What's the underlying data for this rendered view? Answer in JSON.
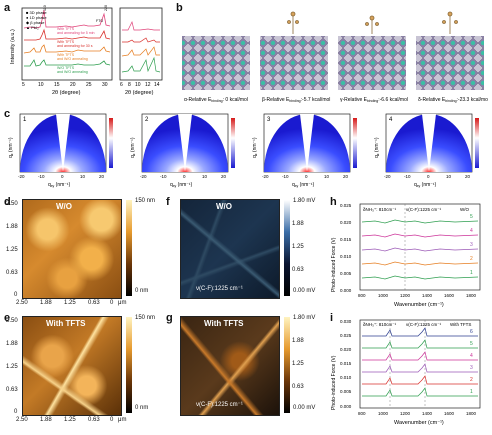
{
  "panels": {
    "a": {
      "label": "a",
      "xlabel": "2θ (degree)",
      "ylabel": "Intensity (a.u.)",
      "inset_xlabel": "2θ (degree)",
      "x_ticks": [
        "5",
        "10",
        "15",
        "20",
        "25",
        "30"
      ],
      "inset_x_ticks": [
        "6",
        "8",
        "10",
        "12",
        "14"
      ],
      "peak_labels": [
        "110",
        "FTO",
        "220"
      ],
      "legend": [
        "3D phase",
        "1D phase",
        "β phase",
        "PbI₂"
      ],
      "traces": [
        "With TFTS and annealing for 5 min",
        "With TFTS and annealing for 30 s",
        "With TFTS and W/O annealing",
        "W/O TFTS and W/O annealing"
      ]
    },
    "b": {
      "label": "b",
      "captions": [
        "α-Relative E_binding: 0 kcal/mol",
        "β-Relative E_binding: -5.7 kcal/mol",
        "γ-Relative E_binding: -6.6 kcal/mol",
        "δ-Relative E_binding: -23.3 kcal/mol"
      ]
    },
    "c": {
      "label": "c",
      "numbers": [
        "1",
        "2",
        "3",
        "4"
      ],
      "xlabel": "q_xy (nm⁻¹)",
      "ylabel": "q_z (nm⁻¹)",
      "x_ticks": [
        "-20",
        "-10",
        "0",
        "10",
        "20"
      ],
      "y_ticks": [
        "0",
        "5",
        "10",
        "15",
        "20"
      ],
      "colorbar": [
        "3.000",
        "2.600",
        "2.200",
        "1.800",
        "1.400",
        "1.000",
        "0.600",
        "0.200"
      ]
    },
    "d": {
      "label": "d",
      "title": "W/O",
      "colorbar_top": "150 nm",
      "colorbar_bottom": "0 nm",
      "y_ticks": [
        "2.50",
        "1.88",
        "1.25",
        "0.63",
        "0"
      ],
      "x_ticks": [
        "2.50",
        "1.88",
        "1.25",
        "0.63",
        "0",
        "μm"
      ]
    },
    "e": {
      "label": "e",
      "title": "With TFTS",
      "colorbar_top": "150 nm",
      "colorbar_bottom": "0 nm",
      "y_ticks": [
        "2.50",
        "1.88",
        "1.25",
        "0.63",
        "0"
      ],
      "x_ticks": [
        "2.50",
        "1.88",
        "1.25",
        "0.63",
        "0",
        "μm"
      ]
    },
    "f": {
      "label": "f",
      "title": "W/O",
      "annotation": "ν(C-F):1225 cm⁻¹",
      "colorbar_top": "1.80 mV",
      "colorbar_bottom": "0.00 mV",
      "y_ticks": [
        "2.50",
        "1.88",
        "1.25",
        "0.63",
        "0.00"
      ]
    },
    "g": {
      "label": "g",
      "title": "With TFTS",
      "annotation": "ν(C-F):1225 cm⁻¹",
      "colorbar_top": "1.80 mV",
      "colorbar_bottom": "0.00 mV",
      "y_ticks": [
        "2.50",
        "1.88",
        "1.25",
        "0.63",
        "0.00"
      ]
    },
    "h": {
      "label": "h",
      "tag": "W/O",
      "annot1": "δNH₃⁺: 810cm⁻¹",
      "annot2": "ν(C-F):1225 cm⁻¹",
      "xlabel": "Wavenumber (cm⁻¹)",
      "ylabel": "Photo-induced Force (V)",
      "y_ticks": [
        "0.025",
        "0.020",
        "0.015",
        "0.010",
        "0.005",
        "0.000"
      ],
      "x_ticks": [
        "800",
        "1000",
        "1200",
        "1400",
        "1600",
        "1800"
      ],
      "trace_ids": [
        "5",
        "4",
        "3",
        "2",
        "1"
      ]
    },
    "i": {
      "label": "i",
      "tag": "With TFTS",
      "annot1": "δNH₃⁺: 810cm⁻¹",
      "annot2": "ν(C-F):1225 cm⁻¹",
      "xlabel": "Wavenumber (cm⁻¹)",
      "ylabel": "Photo-induced Force (V)",
      "y_ticks": [
        "0.030",
        "0.025",
        "0.020",
        "0.015",
        "0.010",
        "0.005",
        "0.000"
      ],
      "x_ticks": [
        "800",
        "1000",
        "1200",
        "1400",
        "1600",
        "1800"
      ],
      "trace_ids": [
        "6",
        "5",
        "4",
        "3",
        "2",
        "1"
      ]
    }
  },
  "colors": {
    "pink": "#e0447a",
    "red": "#d9302c",
    "purple": "#9b59b6",
    "orange": "#e67e22",
    "green": "#2e9e4f",
    "blue": "#2c3e90",
    "magenta": "#cc3399"
  }
}
